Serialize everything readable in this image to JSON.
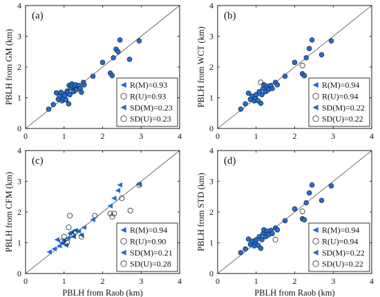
{
  "figure": {
    "xlabel": "PBLH from Raob (km)"
  },
  "style": {
    "marker_blue": "#1f6fd6",
    "marker_edge": "#222222",
    "axis_color": "#000000"
  },
  "chart_data": [
    {
      "type": "scatter",
      "panel_label": "(a)",
      "ylabel": "PBLH from GM (km)",
      "xlim": [
        0,
        4
      ],
      "ylim": [
        0,
        4
      ],
      "xticks": [
        "0",
        "1",
        "2",
        "3",
        "4"
      ],
      "yticks": [
        "0",
        "1",
        "2",
        "3",
        "4"
      ],
      "reference_line": "1:1",
      "legend_position": "bottom-right",
      "legend": [
        {
          "marker": "triangle",
          "text": "R(M)=0.93"
        },
        {
          "marker": "circle",
          "text": "R(U)=0.93"
        },
        {
          "marker": "triangle",
          "text": "SD(M)=0.23"
        },
        {
          "marker": "circle",
          "text": "SD(U)=0.23"
        }
      ],
      "series": [
        {
          "marker": "circle-filled",
          "points": [
            [
              0.6,
              0.63
            ],
            [
              0.72,
              0.78
            ],
            [
              0.8,
              1.16
            ],
            [
              0.85,
              0.95
            ],
            [
              0.88,
              1.05
            ],
            [
              0.92,
              1.18
            ],
            [
              0.95,
              0.9
            ],
            [
              0.98,
              0.98
            ],
            [
              1.0,
              1.12
            ],
            [
              1.02,
              1.06
            ],
            [
              1.05,
              0.93
            ],
            [
              1.08,
              1.22
            ],
            [
              1.1,
              1.16
            ],
            [
              1.12,
              0.8
            ],
            [
              1.13,
              1.4
            ],
            [
              1.15,
              1.1
            ],
            [
              1.18,
              1.32
            ],
            [
              1.2,
              1.45
            ],
            [
              1.22,
              1.38
            ],
            [
              1.25,
              1.2
            ],
            [
              1.28,
              1.36
            ],
            [
              1.3,
              1.42
            ],
            [
              1.32,
              1.26
            ],
            [
              1.38,
              1.4
            ],
            [
              1.42,
              1.3
            ],
            [
              1.45,
              1.18
            ],
            [
              1.5,
              1.5
            ],
            [
              1.52,
              1.42
            ],
            [
              1.75,
              1.7
            ],
            [
              2.0,
              2.15
            ],
            [
              2.2,
              1.8
            ],
            [
              2.25,
              1.72
            ],
            [
              2.28,
              2.3
            ],
            [
              2.35,
              2.58
            ],
            [
              2.4,
              2.5
            ],
            [
              2.45,
              2.88
            ],
            [
              2.7,
              2.25
            ],
            [
              2.95,
              2.85
            ]
          ]
        }
      ]
    },
    {
      "type": "scatter",
      "panel_label": "(b)",
      "ylabel": "PBLH from WCT (km)",
      "xlim": [
        0,
        4
      ],
      "ylim": [
        0,
        4
      ],
      "xticks": [
        "0",
        "1",
        "2",
        "3",
        "4"
      ],
      "yticks": [
        "0",
        "1",
        "2",
        "3",
        "4"
      ],
      "reference_line": "1:1",
      "legend_position": "bottom-right",
      "legend": [
        {
          "marker": "triangle",
          "text": "R(M)=0.94"
        },
        {
          "marker": "circle",
          "text": "R(U)=0.94"
        },
        {
          "marker": "triangle",
          "text": "SD(M)=0.22"
        },
        {
          "marker": "circle",
          "text": "SD(U)=0.22"
        }
      ],
      "series": [
        {
          "marker": "circle-filled",
          "points": [
            [
              0.6,
              0.63
            ],
            [
              0.72,
              0.8
            ],
            [
              0.8,
              1.15
            ],
            [
              0.85,
              0.95
            ],
            [
              0.9,
              1.05
            ],
            [
              0.95,
              0.9
            ],
            [
              0.98,
              1.0
            ],
            [
              1.0,
              1.1
            ],
            [
              1.05,
              0.9
            ],
            [
              1.08,
              1.2
            ],
            [
              1.12,
              0.82
            ],
            [
              1.15,
              1.1
            ],
            [
              1.18,
              1.3
            ],
            [
              1.2,
              1.42
            ],
            [
              1.25,
              1.2
            ],
            [
              1.28,
              1.38
            ],
            [
              1.32,
              1.26
            ],
            [
              1.38,
              1.4
            ],
            [
              1.42,
              1.3
            ],
            [
              1.5,
              1.5
            ],
            [
              1.55,
              1.42
            ],
            [
              1.75,
              1.7
            ],
            [
              2.0,
              2.15
            ],
            [
              2.2,
              1.78
            ],
            [
              2.25,
              1.72
            ],
            [
              2.3,
              2.3
            ],
            [
              2.38,
              2.6
            ],
            [
              2.45,
              2.88
            ],
            [
              2.7,
              2.4
            ],
            [
              2.95,
              2.85
            ]
          ]
        },
        {
          "marker": "circle-open",
          "points": [
            [
              1.12,
              1.5
            ],
            [
              2.2,
              2.05
            ]
          ]
        }
      ]
    },
    {
      "type": "scatter",
      "panel_label": "(c)",
      "ylabel": "PBLH from CFM (km)",
      "xlim": [
        0,
        4
      ],
      "ylim": [
        0,
        4
      ],
      "xticks": [
        "0",
        "1",
        "2",
        "3",
        "4"
      ],
      "yticks": [
        "0",
        "1",
        "2",
        "3",
        "4"
      ],
      "reference_line": "1:1",
      "legend_position": "bottom-right",
      "legend": [
        {
          "marker": "triangle",
          "text": "R(M)=0.94"
        },
        {
          "marker": "circle",
          "text": "R(U)=0.90"
        },
        {
          "marker": "triangle",
          "text": "SD(M)=0.21"
        },
        {
          "marker": "circle",
          "text": "SD(U)=0.28"
        }
      ],
      "series": [
        {
          "marker": "triangle-filled",
          "points": [
            [
              0.62,
              0.7
            ],
            [
              0.75,
              0.8
            ],
            [
              0.82,
              1.1
            ],
            [
              0.88,
              0.9
            ],
            [
              0.95,
              1.0
            ],
            [
              1.0,
              1.08
            ],
            [
              1.05,
              0.92
            ],
            [
              1.1,
              1.15
            ],
            [
              1.15,
              1.3
            ],
            [
              1.2,
              1.35
            ],
            [
              1.25,
              1.2
            ],
            [
              1.3,
              1.4
            ],
            [
              1.38,
              1.38
            ],
            [
              1.45,
              1.25
            ],
            [
              1.52,
              1.5
            ],
            [
              1.75,
              1.75
            ],
            [
              2.2,
              2.2
            ],
            [
              2.3,
              2.45
            ],
            [
              2.4,
              2.7
            ],
            [
              2.45,
              2.88
            ],
            [
              2.95,
              2.9
            ]
          ]
        },
        {
          "marker": "circle-open",
          "points": [
            [
              0.95,
              1.05
            ],
            [
              1.0,
              1.2
            ],
            [
              1.08,
              1.0
            ],
            [
              1.12,
              1.5
            ],
            [
              1.15,
              1.88
            ],
            [
              1.2,
              1.25
            ],
            [
              1.3,
              1.35
            ],
            [
              1.45,
              1.2
            ],
            [
              1.8,
              1.88
            ],
            [
              2.2,
              1.95
            ],
            [
              2.25,
              1.85
            ],
            [
              2.3,
              1.95
            ],
            [
              2.5,
              2.45
            ],
            [
              2.72,
              2.05
            ],
            [
              2.95,
              2.88
            ]
          ]
        }
      ]
    },
    {
      "type": "scatter",
      "panel_label": "(d)",
      "ylabel": "PBLH from STD (km)",
      "xlim": [
        0,
        4
      ],
      "ylim": [
        0,
        4
      ],
      "xticks": [
        "0",
        "1",
        "2",
        "3",
        "4"
      ],
      "yticks": [
        "0",
        "1",
        "2",
        "3",
        "4"
      ],
      "reference_line": "1:1",
      "legend_position": "bottom-right",
      "legend": [
        {
          "marker": "triangle",
          "text": "R(M)=0.94"
        },
        {
          "marker": "circle",
          "text": "R(U)=0.94"
        },
        {
          "marker": "triangle",
          "text": "SD(M)=0.22"
        },
        {
          "marker": "circle",
          "text": "SD(U)=0.22"
        }
      ],
      "series": [
        {
          "marker": "circle-filled",
          "points": [
            [
              0.6,
              0.68
            ],
            [
              0.72,
              0.8
            ],
            [
              0.8,
              1.12
            ],
            [
              0.85,
              0.95
            ],
            [
              0.9,
              1.05
            ],
            [
              0.95,
              0.9
            ],
            [
              0.98,
              1.0
            ],
            [
              1.0,
              1.1
            ],
            [
              1.05,
              0.92
            ],
            [
              1.08,
              1.2
            ],
            [
              1.12,
              0.82
            ],
            [
              1.15,
              1.1
            ],
            [
              1.18,
              1.3
            ],
            [
              1.2,
              1.42
            ],
            [
              1.25,
              1.2
            ],
            [
              1.28,
              1.38
            ],
            [
              1.32,
              1.26
            ],
            [
              1.38,
              1.4
            ],
            [
              1.42,
              1.3
            ],
            [
              1.5,
              1.48
            ],
            [
              1.55,
              1.42
            ],
            [
              1.75,
              1.72
            ],
            [
              2.0,
              2.1
            ],
            [
              2.2,
              1.78
            ],
            [
              2.25,
              1.75
            ],
            [
              2.3,
              2.3
            ],
            [
              2.38,
              2.62
            ],
            [
              2.45,
              2.88
            ],
            [
              2.7,
              2.38
            ],
            [
              2.95,
              2.85
            ]
          ]
        },
        {
          "marker": "circle-open",
          "points": [
            [
              1.5,
              1.1
            ],
            [
              2.2,
              2.02
            ]
          ]
        }
      ]
    }
  ]
}
